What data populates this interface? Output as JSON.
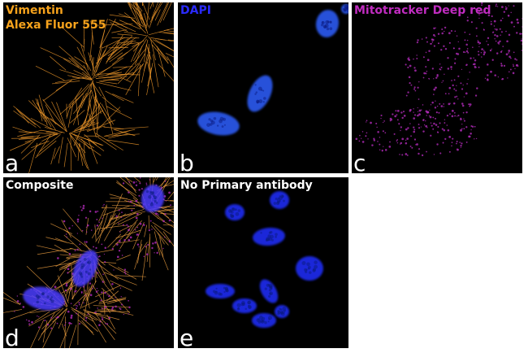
{
  "panels": [
    {
      "letter": "a",
      "caption": [
        "Vimentin",
        "Alexa Fluor 555"
      ]
    },
    {
      "letter": "b",
      "caption": [
        "DAPI"
      ]
    },
    {
      "letter": "c",
      "caption": [
        "Mitotracker Deep red"
      ]
    },
    {
      "letter": "d",
      "caption": [
        "Composite"
      ]
    },
    {
      "letter": "e",
      "caption": [
        "No Primary antibody"
      ]
    }
  ]
}
